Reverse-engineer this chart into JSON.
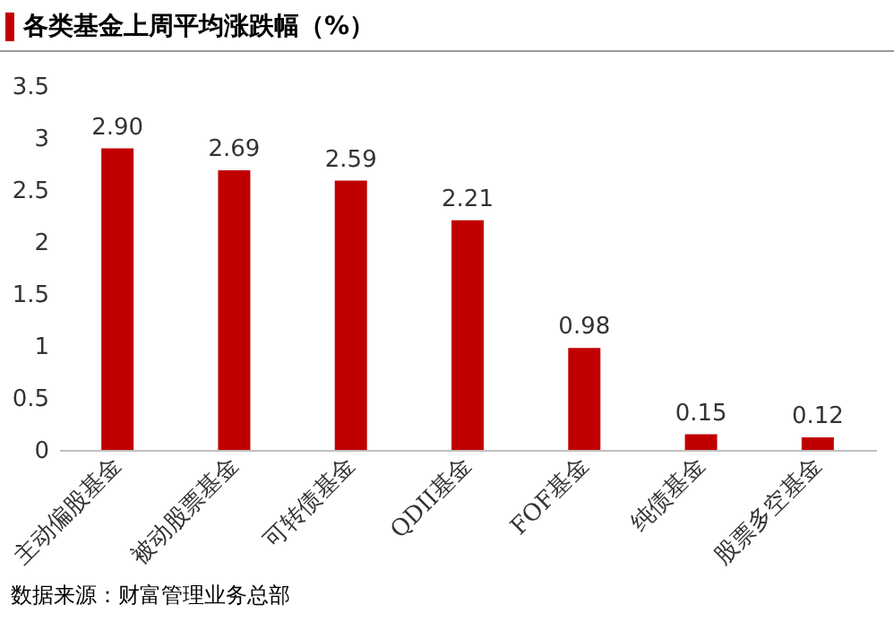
{
  "chart_data": {
    "type": "bar",
    "title": "各类基金上周平均涨跌幅（%）",
    "categories": [
      "主动偏股基金",
      "被动股票基金",
      "可转债基金",
      "QDII基金",
      "FOF基金",
      "纯债基金",
      "股票多空基金"
    ],
    "values": [
      2.9,
      2.69,
      2.59,
      2.21,
      0.98,
      0.15,
      0.12
    ],
    "value_labels": [
      "2.90",
      "2.69",
      "2.59",
      "2.21",
      "0.98",
      "0.15",
      "0.12"
    ],
    "color": "#c00000",
    "ylim": [
      0,
      3.5
    ],
    "yticks": [
      0,
      0.5,
      1,
      1.5,
      2,
      2.5,
      3,
      3.5
    ],
    "grid": false,
    "annotations": [
      "数据来源：财富管理业务总部"
    ]
  }
}
